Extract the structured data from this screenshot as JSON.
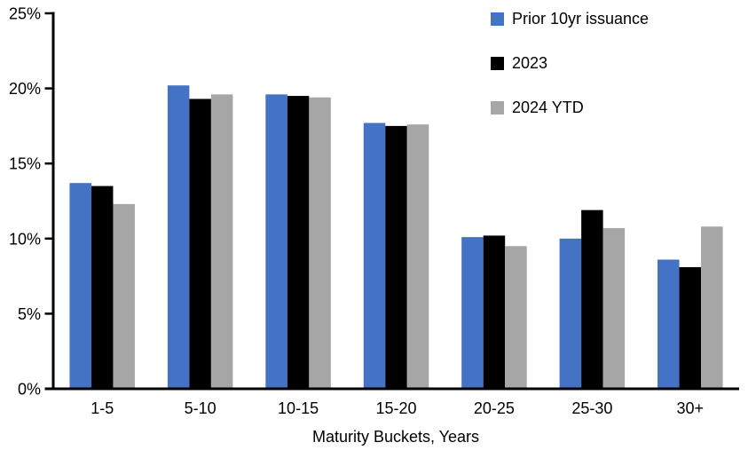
{
  "chart_data": {
    "type": "bar",
    "title": "",
    "xlabel": "Maturity Buckets, Years",
    "ylabel": "",
    "categories": [
      "1-5",
      "5-10",
      "10-15",
      "15-20",
      "20-25",
      "25-30",
      "30+"
    ],
    "series": [
      {
        "name": "Prior 10yr issuance",
        "color": "#4472C4",
        "values": [
          13.7,
          20.2,
          19.6,
          17.7,
          10.1,
          10.0,
          8.6
        ]
      },
      {
        "name": "2023",
        "color": "#000000",
        "values": [
          13.5,
          19.3,
          19.5,
          17.5,
          10.2,
          11.9,
          8.1
        ]
      },
      {
        "name": "2024 YTD",
        "color": "#A6A6A6",
        "values": [
          12.3,
          19.6,
          19.4,
          17.6,
          9.5,
          10.7,
          10.8
        ]
      }
    ],
    "y_axis": {
      "min": 0,
      "max": 25,
      "step": 5,
      "tick_labels": [
        "0%",
        "5%",
        "10%",
        "15%",
        "20%",
        "25%"
      ]
    },
    "legend": {
      "position": "top-right"
    },
    "grid": false,
    "axis_color": "#000000",
    "text_color": "#000000"
  }
}
